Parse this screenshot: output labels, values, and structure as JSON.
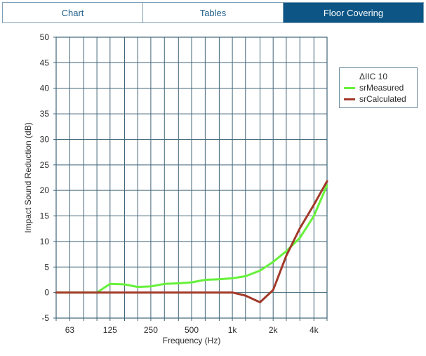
{
  "tabs": [
    {
      "label": "Chart",
      "active": false
    },
    {
      "label": "Tables",
      "active": false
    },
    {
      "label": "Floor Covering",
      "active": true
    }
  ],
  "colors": {
    "accent": "#0c5585",
    "grid": "#3f6478",
    "series_measured": "#66f13a",
    "series_calculated": "#a23a2a"
  },
  "legend": {
    "title": "ΔIIC 10",
    "items": [
      {
        "label": "srMeasured",
        "color": "#66f13a"
      },
      {
        "label": "srCalculated",
        "color": "#a23a2a"
      }
    ]
  },
  "chart_data": {
    "type": "line",
    "title": "",
    "xlabel": "Frequency (Hz)",
    "ylabel": "Impact Sound Reduction (dB)",
    "ylim": [
      -5,
      50
    ],
    "yticks": [
      -5,
      0,
      5,
      10,
      15,
      20,
      25,
      30,
      35,
      40,
      45,
      50
    ],
    "x_scale": "log",
    "x": [
      50,
      63,
      80,
      100,
      125,
      160,
      200,
      250,
      315,
      400,
      500,
      630,
      800,
      1000,
      1250,
      1600,
      2000,
      2500,
      3150,
      4000,
      5000
    ],
    "xtick_labels": [
      {
        "x": 63,
        "label": "63"
      },
      {
        "x": 125,
        "label": "125"
      },
      {
        "x": 250,
        "label": "250"
      },
      {
        "x": 500,
        "label": "500"
      },
      {
        "x": 1000,
        "label": "1k"
      },
      {
        "x": 2000,
        "label": "2k"
      },
      {
        "x": 4000,
        "label": "4k"
      }
    ],
    "grid": true,
    "legend_position": "right",
    "series": [
      {
        "name": "srMeasured",
        "color": "#66f13a",
        "values": [
          0,
          0,
          0,
          0,
          1.7,
          1.6,
          1.1,
          1.2,
          1.7,
          1.8,
          2.0,
          2.5,
          2.6,
          2.8,
          3.2,
          4.3,
          6.0,
          8.1,
          10.7,
          15.0,
          21.0
        ]
      },
      {
        "name": "srCalculated",
        "color": "#a23a2a",
        "values": [
          0,
          0,
          0,
          0,
          0,
          0,
          0,
          0,
          0,
          0,
          0,
          0,
          0,
          0,
          -0.6,
          -1.9,
          0.5,
          7.2,
          12.6,
          17.2,
          21.8
        ]
      }
    ]
  }
}
